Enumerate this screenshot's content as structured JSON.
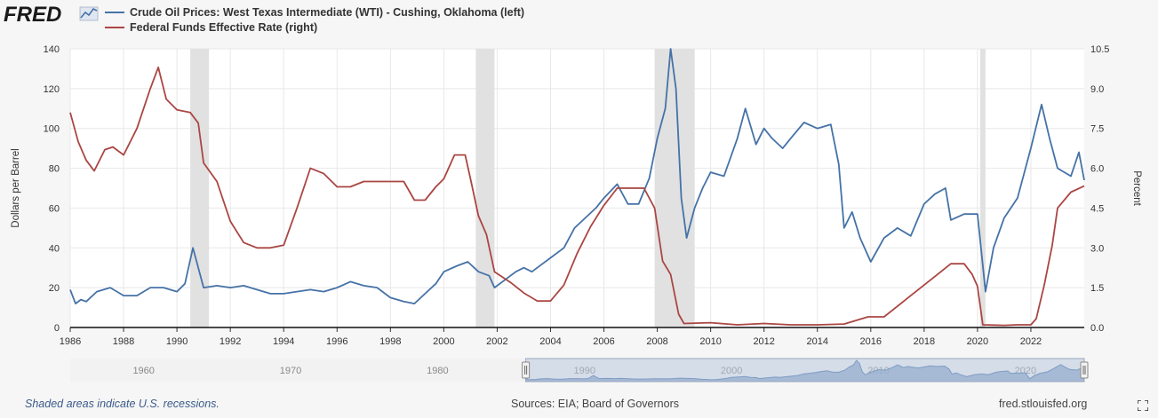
{
  "branding": {
    "logo_text": "FRED"
  },
  "legend": [
    {
      "label": "Crude Oil Prices: West Texas Intermediate (WTI) - Cushing, Oklahoma (left)",
      "color": "#4572a7"
    },
    {
      "label": "Federal Funds Effective Rate (right)",
      "color": "#aa4643"
    }
  ],
  "footer": {
    "recession_note": "Shaded areas indicate U.S. recessions.",
    "sources": "Sources: EIA; Board of Governors",
    "site": "fred.stlouisfed.org"
  },
  "colors": {
    "oil": "#4572a7",
    "rate": "#aa4643",
    "recession": "#e1e1e1",
    "grid": "#e8e8e8",
    "background": "#ffffff",
    "navigator": "#b8c8e0"
  },
  "icons": [
    "fullscreen-icon",
    "navigator-handle-icon"
  ],
  "chart_data": {
    "type": "line",
    "xlabel": "",
    "ylabel_left": "Dollars per Barrel",
    "ylabel_right": "Percent",
    "xlim": [
      1986,
      2024
    ],
    "ylim_left": [
      0,
      140
    ],
    "ylim_right": [
      0,
      10.5
    ],
    "x_ticks": [
      "1986",
      "1988",
      "1990",
      "1992",
      "1994",
      "1996",
      "1998",
      "2000",
      "2002",
      "2004",
      "2006",
      "2008",
      "2010",
      "2012",
      "2014",
      "2016",
      "2018",
      "2020",
      "2022"
    ],
    "y_ticks_left": [
      "0",
      "20",
      "40",
      "60",
      "80",
      "100",
      "120",
      "140"
    ],
    "y_ticks_right": [
      "0.0",
      "1.5",
      "3.0",
      "4.5",
      "6.0",
      "7.5",
      "9.0",
      "10.5"
    ],
    "grid": true,
    "legend_position": "top-left",
    "recessions": [
      [
        1990.5,
        1991.2
      ],
      [
        2001.2,
        2001.9
      ],
      [
        2007.9,
        2009.4
      ],
      [
        2020.1,
        2020.3
      ]
    ],
    "series": [
      {
        "name": "Crude Oil Prices: West Texas Intermediate (WTI) - Cushing, Oklahoma (left)",
        "axis": "left",
        "x": [
          1986,
          1986.2,
          1986.4,
          1986.6,
          1987,
          1987.5,
          1988,
          1988.5,
          1989,
          1989.5,
          1990,
          1990.3,
          1990.6,
          1990.8,
          1991,
          1991.5,
          1992,
          1992.5,
          1993,
          1993.5,
          1994,
          1994.5,
          1995,
          1995.5,
          1996,
          1996.5,
          1997,
          1997.5,
          1998,
          1998.5,
          1998.9,
          1999.3,
          1999.7,
          2000,
          2000.5,
          2000.9,
          2001.3,
          2001.7,
          2001.9,
          2002.3,
          2002.7,
          2003,
          2003.3,
          2003.7,
          2004,
          2004.5,
          2004.9,
          2005.3,
          2005.7,
          2006,
          2006.5,
          2006.9,
          2007.3,
          2007.7,
          2008,
          2008.3,
          2008.5,
          2008.7,
          2008.9,
          2009.1,
          2009.4,
          2009.7,
          2010,
          2010.5,
          2011,
          2011.3,
          2011.7,
          2012,
          2012.3,
          2012.7,
          2013,
          2013.5,
          2014,
          2014.5,
          2014.8,
          2015,
          2015.3,
          2015.6,
          2016,
          2016.5,
          2017,
          2017.5,
          2018,
          2018.4,
          2018.8,
          2019,
          2019.5,
          2020,
          2020.3,
          2020.6,
          2021,
          2021.5,
          2022,
          2022.4,
          2022.7,
          2023,
          2023.5,
          2023.8,
          2024
        ],
        "values": [
          19,
          12,
          14,
          13,
          18,
          20,
          16,
          16,
          20,
          20,
          18,
          22,
          40,
          30,
          20,
          21,
          20,
          21,
          19,
          17,
          17,
          18,
          19,
          18,
          20,
          23,
          21,
          20,
          15,
          13,
          12,
          17,
          22,
          28,
          31,
          33,
          28,
          26,
          20,
          24,
          28,
          30,
          28,
          32,
          35,
          40,
          50,
          55,
          60,
          65,
          72,
          62,
          62,
          75,
          95,
          110,
          140,
          120,
          65,
          45,
          60,
          70,
          78,
          76,
          95,
          110,
          92,
          100,
          95,
          90,
          95,
          103,
          100,
          102,
          82,
          50,
          58,
          45,
          33,
          45,
          50,
          46,
          62,
          67,
          70,
          54,
          57,
          57,
          18,
          40,
          55,
          65,
          90,
          112,
          95,
          80,
          76,
          88,
          74
        ]
      },
      {
        "name": "Federal Funds Effective Rate (right)",
        "axis": "right",
        "x": [
          1986,
          1986.3,
          1986.6,
          1986.9,
          1987,
          1987.3,
          1987.6,
          1988,
          1988.5,
          1989,
          1989.3,
          1989.6,
          1990,
          1990.5,
          1990.8,
          1991,
          1991.5,
          1992,
          1992.5,
          1993,
          1993.5,
          1994,
          1994.5,
          1995,
          1995.5,
          1996,
          1996.5,
          1997,
          1997.5,
          1998,
          1998.5,
          1998.9,
          1999.3,
          1999.7,
          2000,
          2000.4,
          2000.8,
          2001,
          2001.3,
          2001.6,
          2001.9,
          2002.5,
          2003,
          2003.5,
          2004,
          2004.5,
          2005,
          2005.5,
          2006,
          2006.5,
          2007,
          2007.5,
          2007.9,
          2008.2,
          2008.5,
          2008.8,
          2009,
          2010,
          2011,
          2012,
          2013,
          2014,
          2015,
          2015.9,
          2016.5,
          2017,
          2017.5,
          2018,
          2018.5,
          2019,
          2019.5,
          2019.8,
          2020,
          2020.2,
          2020.6,
          2021,
          2021.5,
          2022,
          2022.2,
          2022.5,
          2022.8,
          2023,
          2023.5,
          2024
        ],
        "values": [
          8.1,
          7.0,
          6.3,
          5.9,
          6.1,
          6.7,
          6.8,
          6.5,
          7.5,
          9.0,
          9.8,
          8.6,
          8.2,
          8.1,
          7.7,
          6.2,
          5.5,
          4.0,
          3.2,
          3.0,
          3.0,
          3.1,
          4.5,
          6.0,
          5.8,
          5.3,
          5.3,
          5.5,
          5.5,
          5.5,
          5.5,
          4.8,
          4.8,
          5.3,
          5.6,
          6.5,
          6.5,
          5.6,
          4.2,
          3.5,
          2.1,
          1.7,
          1.3,
          1.0,
          1.0,
          1.6,
          2.8,
          3.8,
          4.6,
          5.25,
          5.25,
          5.25,
          4.5,
          2.5,
          2.0,
          0.5,
          0.15,
          0.18,
          0.1,
          0.15,
          0.1,
          0.1,
          0.13,
          0.4,
          0.4,
          0.8,
          1.2,
          1.6,
          2.0,
          2.4,
          2.4,
          2.0,
          1.55,
          0.1,
          0.09,
          0.08,
          0.1,
          0.1,
          0.33,
          1.6,
          3.1,
          4.5,
          5.1,
          5.33
        ]
      }
    ],
    "navigator": {
      "x_ticks": [
        "1960",
        "1970",
        "1980",
        "1990",
        "2000",
        "2010",
        "2020"
      ],
      "range": [
        1986,
        2024
      ]
    }
  }
}
